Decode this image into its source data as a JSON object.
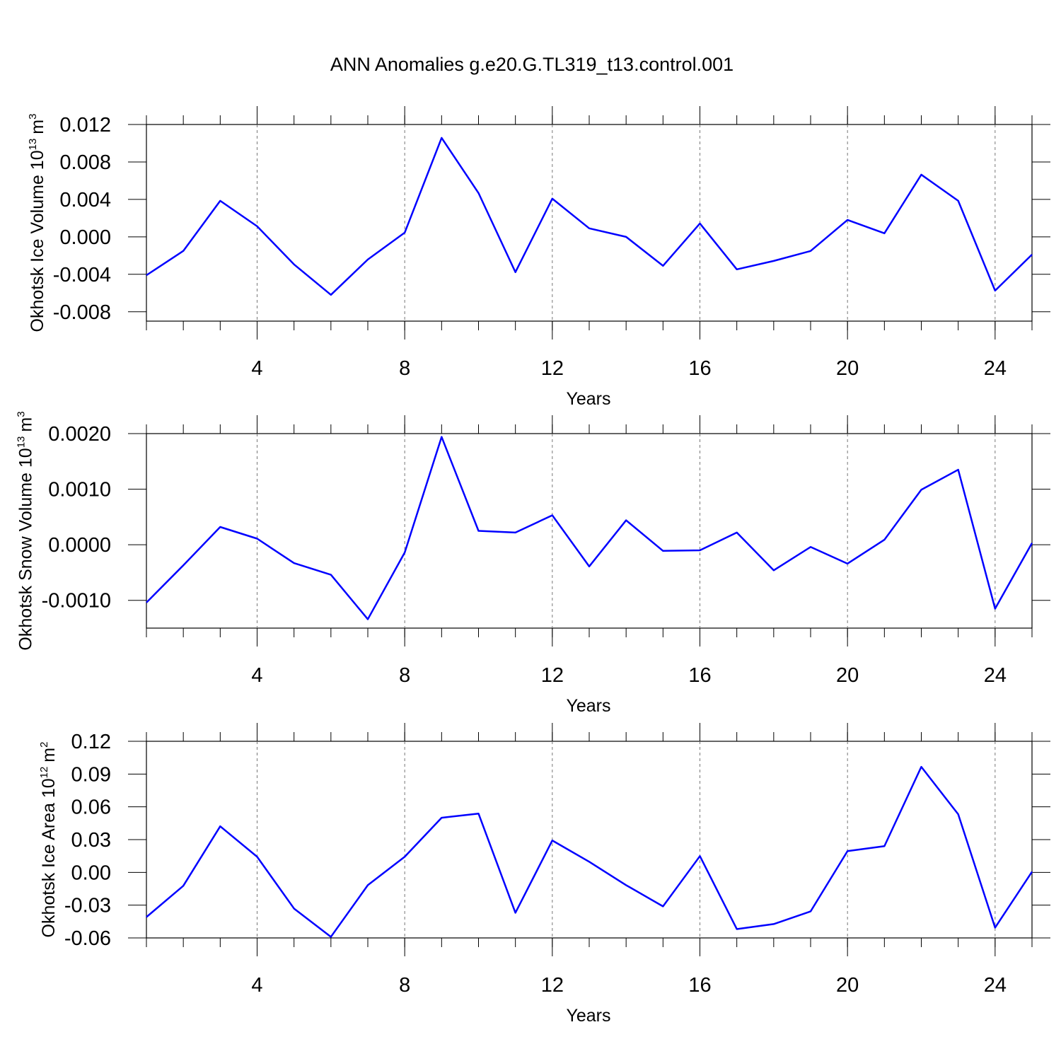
{
  "chart_data": [
    {
      "type": "line",
      "title": "ANN Anomalies g.e20.G.TL319_t13.control.001",
      "y_label": "Okhotsk Ice Volume 10",
      "y_label_exp": "13",
      "y_label_unit": "m",
      "y_label_unit_exp": "3",
      "x_label": "Years",
      "x": [
        1,
        2,
        3,
        4,
        5,
        6,
        7,
        8,
        9,
        10,
        11,
        12,
        13,
        14,
        15,
        16,
        17,
        18,
        19,
        20,
        21,
        22,
        23,
        24,
        25
      ],
      "values": [
        -0.0041,
        -0.0015,
        0.00385,
        0.00113,
        -0.00294,
        -0.00619,
        -0.00242,
        0.00045,
        0.01057,
        0.00468,
        -0.00377,
        0.00408,
        0.00091,
        0.0,
        -0.00309,
        0.00143,
        -0.00347,
        -0.00257,
        -0.00151,
        0.00181,
        0.00038,
        0.00664,
        0.00385,
        -0.00574,
        -0.00189
      ],
      "color": "#0000ff",
      "xlim": [
        1,
        25
      ],
      "xticks": [
        4,
        8,
        12,
        16,
        20,
        24
      ],
      "ylim": [
        -0.009,
        0.012
      ],
      "yticks": [
        {
          "value": 0.012,
          "label": "0.012"
        },
        {
          "value": 0.008,
          "label": "0.008"
        },
        {
          "value": 0.004,
          "label": "0.004"
        },
        {
          "value": 0,
          "label": "0.000"
        },
        {
          "value": -0.004,
          "label": "-0.004"
        },
        {
          "value": -0.008,
          "label": "-0.008"
        }
      ],
      "grid": true
    },
    {
      "type": "line",
      "y_label": "Okhotsk Snow Volume 10",
      "y_label_exp": "13",
      "y_label_unit": "m",
      "y_label_unit_exp": "3",
      "x_label": "Years",
      "x": [
        1,
        2,
        3,
        4,
        5,
        6,
        7,
        8,
        9,
        10,
        11,
        12,
        13,
        14,
        15,
        16,
        17,
        18,
        19,
        20,
        21,
        22,
        23,
        24,
        25
      ],
      "values": [
        -0.00104,
        -0.00037,
        0.00032,
        0.00011,
        -0.00033,
        -0.00054,
        -0.00134,
        -0.00014,
        0.00194,
        0.00025,
        0.00022,
        0.00053,
        -0.00039,
        0.00044,
        -0.00011,
        -0.0001,
        0.00022,
        -0.00046,
        -4e-05,
        -0.00034,
        9e-05,
        0.00099,
        0.00135,
        -0.00115,
        3e-05
      ],
      "color": "#0000ff",
      "xlim": [
        1,
        25
      ],
      "xticks": [
        4,
        8,
        12,
        16,
        20,
        24
      ],
      "ylim": [
        -0.0015,
        0.002
      ],
      "yticks": [
        {
          "value": 0.002,
          "label": "0.0020"
        },
        {
          "value": 0.001,
          "label": "0.0010"
        },
        {
          "value": 0,
          "label": "0.0000"
        },
        {
          "value": -0.001,
          "label": "-0.0010"
        }
      ],
      "grid": true
    },
    {
      "type": "line",
      "y_label": "Okhotsk Ice Area 10",
      "y_label_exp": "12",
      "y_label_unit": "m",
      "y_label_unit_exp": "2",
      "x_label": "Years",
      "x": [
        1,
        2,
        3,
        4,
        5,
        6,
        7,
        8,
        9,
        10,
        11,
        12,
        13,
        14,
        15,
        16,
        17,
        18,
        19,
        20,
        21,
        22,
        23,
        24,
        25
      ],
      "values": [
        -0.0409,
        -0.0123,
        0.0422,
        0.0143,
        -0.0331,
        -0.059,
        -0.0117,
        0.0143,
        0.05,
        0.0538,
        -0.037,
        0.0292,
        0.0097,
        -0.0117,
        -0.0311,
        0.0149,
        -0.0519,
        -0.0473,
        -0.0357,
        0.0195,
        0.024,
        0.0966,
        0.0532,
        -0.0506,
        0.0006
      ],
      "color": "#0000ff",
      "xlim": [
        1,
        25
      ],
      "xticks": [
        4,
        8,
        12,
        16,
        20,
        24
      ],
      "ylim": [
        -0.06,
        0.12
      ],
      "yticks": [
        {
          "value": 0.12,
          "label": "0.12"
        },
        {
          "value": 0.09,
          "label": "0.09"
        },
        {
          "value": 0.06,
          "label": "0.06"
        },
        {
          "value": 0.03,
          "label": "0.03"
        },
        {
          "value": 0,
          "label": "0.00"
        },
        {
          "value": -0.03,
          "label": "-0.03"
        },
        {
          "value": -0.06,
          "label": "-0.06"
        }
      ],
      "grid": true
    }
  ]
}
